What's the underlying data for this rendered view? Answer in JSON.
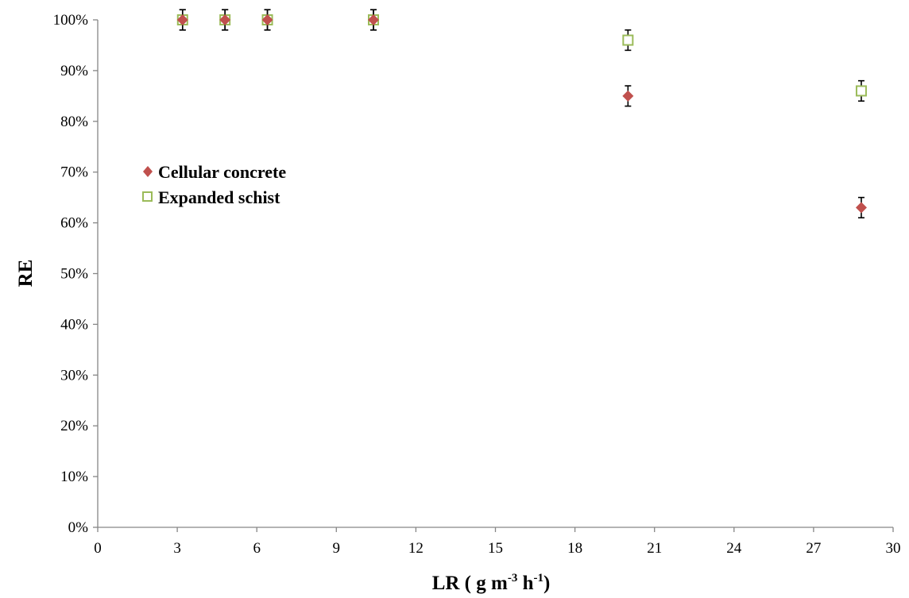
{
  "chart_data": {
    "type": "scatter",
    "xlabel": "LR ( g m-3 h-1)",
    "xlabel_parts": {
      "base": "LR ( g m",
      "sup1": "-3",
      "mid": " h",
      "sup2": "-1",
      "end": ")"
    },
    "ylabel": "RE",
    "xlim": [
      0,
      30
    ],
    "ylim": [
      0,
      100
    ],
    "x_ticks": [
      "0",
      "3",
      "6",
      "9",
      "12",
      "15",
      "18",
      "21",
      "24",
      "27",
      "30"
    ],
    "y_ticks": [
      "0%",
      "10%",
      "20%",
      "30%",
      "40%",
      "50%",
      "60%",
      "70%",
      "80%",
      "90%",
      "100%"
    ],
    "grid": false,
    "legend_position": "middle-left",
    "series": [
      {
        "name": "Cellular concrete",
        "marker": "diamond",
        "color": "#C0504D",
        "points": [
          {
            "x": 3.2,
            "y": 100,
            "err": 2
          },
          {
            "x": 4.8,
            "y": 100,
            "err": 2
          },
          {
            "x": 6.4,
            "y": 100,
            "err": 2
          },
          {
            "x": 10.4,
            "y": 100,
            "err": 2
          },
          {
            "x": 20.0,
            "y": 85,
            "err": 2
          },
          {
            "x": 28.8,
            "y": 63,
            "err": 2
          }
        ]
      },
      {
        "name": "Expanded schist",
        "marker": "open-square",
        "color": "#9BBB59",
        "points": [
          {
            "x": 3.2,
            "y": 100,
            "err": 2
          },
          {
            "x": 4.8,
            "y": 100,
            "err": 2
          },
          {
            "x": 6.4,
            "y": 100,
            "err": 2
          },
          {
            "x": 10.4,
            "y": 100,
            "err": 2
          },
          {
            "x": 20.0,
            "y": 96,
            "err": 2
          },
          {
            "x": 28.8,
            "y": 86,
            "err": 2
          }
        ]
      }
    ]
  }
}
